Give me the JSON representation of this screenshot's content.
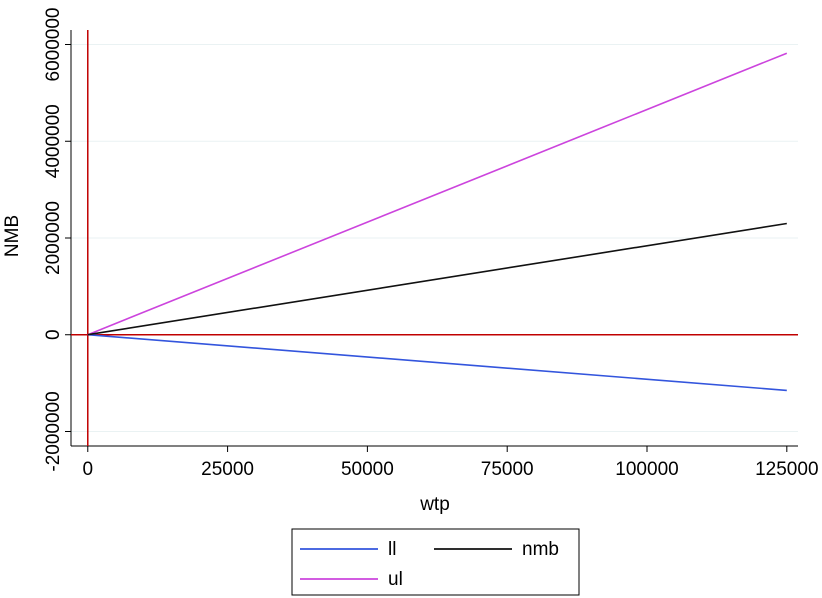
{
  "chart_data": {
    "type": "line",
    "title": "",
    "xlabel": "wtp",
    "ylabel": "NMB",
    "xlim": [
      -3000,
      127000
    ],
    "ylim": [
      -2300000,
      6300000
    ],
    "xticks": [
      0,
      25000,
      50000,
      75000,
      100000,
      125000
    ],
    "xtick_labels": [
      "0",
      "25000",
      "50000",
      "75000",
      "100000",
      "125000"
    ],
    "yticks": [
      -2000000,
      0,
      2000000,
      4000000,
      6000000
    ],
    "ytick_labels": [
      "-2000000",
      "0",
      "2000000",
      "4000000",
      "6000000"
    ],
    "grid": true,
    "legend_position": "bottom",
    "reference_lines": {
      "x": 0,
      "y": 0,
      "color": "#c00000"
    },
    "series": [
      {
        "name": "ll",
        "color": "#3355dd",
        "x": [
          0,
          125000
        ],
        "y": [
          0,
          -1150000
        ]
      },
      {
        "name": "ul",
        "color": "#cc44dd",
        "x": [
          0,
          125000
        ],
        "y": [
          0,
          5820000
        ]
      },
      {
        "name": "nmb",
        "color": "#111111",
        "x": [
          0,
          125000
        ],
        "y": [
          0,
          2300000
        ]
      }
    ]
  }
}
